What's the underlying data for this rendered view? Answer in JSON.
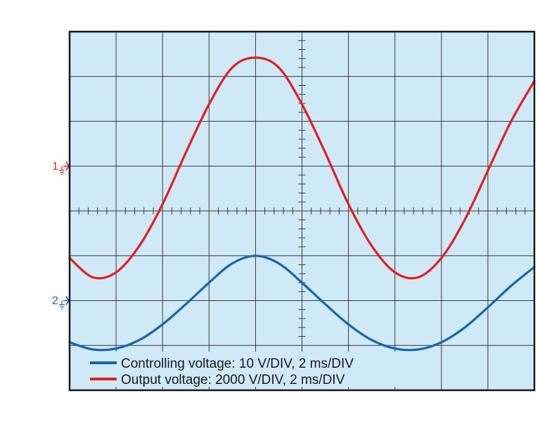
{
  "chart_data": {
    "type": "line",
    "title": "",
    "xlabel": "",
    "ylabel": "",
    "grid": true,
    "divisions": {
      "x": 10,
      "y": 8
    },
    "xlim": [
      0,
      10
    ],
    "ylim": [
      -4,
      4
    ],
    "legend_position": "bottom-left",
    "channel_markers": [
      {
        "label": "1",
        "color": "#e11f26",
        "level_div": 1
      },
      {
        "label": "2",
        "color": "#1565b0",
        "level_div": -2
      }
    ],
    "series": [
      {
        "name": "Controlling voltage: 10 V/DIV, 2 ms/DIV",
        "color": "#1565b0",
        "x": [
          0,
          0.5,
          1,
          1.5,
          2,
          2.5,
          3,
          3.5,
          4,
          4.5,
          5,
          5.5,
          6,
          6.5,
          7,
          7.5,
          8,
          8.5,
          9,
          9.5,
          10
        ],
        "y": [
          -2.93,
          -3.09,
          -3.07,
          -2.88,
          -2.53,
          -2.08,
          -1.6,
          -1.17,
          -1.0,
          -1.17,
          -1.6,
          -2.08,
          -2.53,
          -2.88,
          -3.07,
          -3.09,
          -2.93,
          -2.6,
          -2.15,
          -1.67,
          -1.25
        ]
      },
      {
        "name": "Output voltage: 2000 V/DIV, 2 ms/DIV",
        "color": "#e11f26",
        "x": [
          0,
          0.5,
          1,
          1.5,
          2,
          2.5,
          3,
          3.5,
          4,
          4.5,
          5,
          5.5,
          6,
          6.5,
          7,
          7.5,
          8,
          8.5,
          9,
          9.5,
          10
        ],
        "y": [
          -1.05,
          -1.48,
          -1.37,
          -0.78,
          0.15,
          1.3,
          2.38,
          3.2,
          3.42,
          3.2,
          2.38,
          1.3,
          0.15,
          -0.78,
          -1.37,
          -1.48,
          -1.05,
          -0.2,
          0.9,
          2.0,
          2.9
        ]
      }
    ]
  },
  "colors": {
    "screen_bg": "#cfe9f6",
    "grid": "#3b3b3b",
    "frame": "#1a1a1a"
  }
}
